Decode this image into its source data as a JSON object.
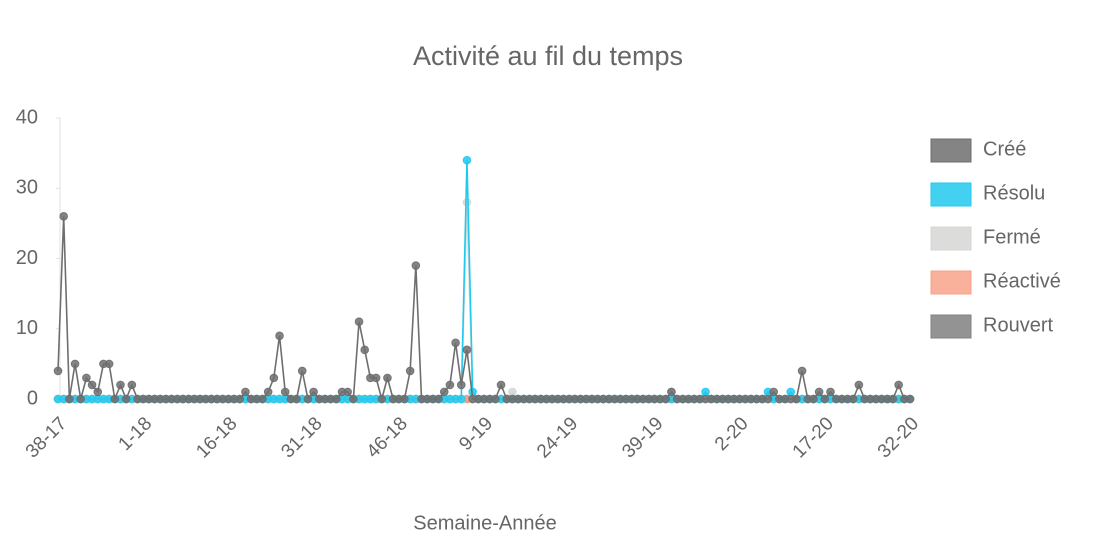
{
  "chart_data": {
    "type": "line",
    "title": "Activité au fil du temps",
    "x_label": "Semaine-Année",
    "categories": [
      "38-17",
      null,
      null,
      null,
      null,
      null,
      null,
      null,
      null,
      null,
      null,
      null,
      null,
      null,
      null,
      "1-18",
      null,
      null,
      null,
      null,
      null,
      null,
      null,
      null,
      null,
      null,
      null,
      null,
      null,
      null,
      "16-18",
      null,
      null,
      null,
      null,
      null,
      null,
      null,
      null,
      null,
      null,
      null,
      null,
      null,
      null,
      "31-18",
      null,
      null,
      null,
      null,
      null,
      null,
      null,
      null,
      null,
      null,
      null,
      null,
      null,
      null,
      "46-18",
      null,
      null,
      null,
      null,
      null,
      null,
      null,
      null,
      null,
      null,
      null,
      null,
      null,
      null,
      "9-19",
      null,
      null,
      null,
      null,
      null,
      null,
      null,
      null,
      null,
      null,
      null,
      null,
      null,
      null,
      "24-19",
      null,
      null,
      null,
      null,
      null,
      null,
      null,
      null,
      null,
      null,
      null,
      null,
      null,
      null,
      "39-19",
      null,
      null,
      null,
      null,
      null,
      null,
      null,
      null,
      null,
      null,
      null,
      null,
      null,
      null,
      "2-20",
      null,
      null,
      null,
      null,
      null,
      null,
      null,
      null,
      null,
      null,
      null,
      null,
      null,
      null,
      "17-20",
      null,
      null,
      null,
      null,
      null,
      null,
      null,
      null,
      null,
      null,
      null,
      null,
      null,
      null,
      "32-20"
    ],
    "series": [
      {
        "name": "Créé",
        "color": "#6e6e6e",
        "values": [
          4,
          26,
          0,
          5,
          0,
          3,
          2,
          1,
          5,
          5,
          0,
          2,
          0,
          2,
          0,
          0,
          0,
          0,
          0,
          0,
          0,
          0,
          0,
          0,
          0,
          0,
          0,
          0,
          0,
          0,
          0,
          0,
          0,
          1,
          0,
          0,
          0,
          1,
          3,
          9,
          1,
          0,
          0,
          4,
          0,
          1,
          0,
          0,
          0,
          0,
          1,
          1,
          0,
          11,
          7,
          3,
          3,
          0,
          3,
          0,
          0,
          0,
          4,
          19,
          0,
          0,
          0,
          0,
          1,
          2,
          8,
          2,
          7,
          0,
          0,
          0,
          0,
          0,
          2,
          0,
          0,
          0,
          0,
          0,
          0,
          0,
          0,
          0,
          0,
          0,
          0,
          0,
          0,
          0,
          0,
          0,
          0,
          0,
          0,
          0,
          0,
          0,
          0,
          0,
          0,
          0,
          0,
          0,
          1,
          0,
          0,
          0,
          0,
          0,
          0,
          0,
          0,
          0,
          0,
          0,
          0,
          0,
          0,
          0,
          0,
          0,
          1,
          0,
          0,
          0,
          0,
          4,
          0,
          0,
          1,
          0,
          1,
          0,
          0,
          0,
          0,
          2,
          0,
          0,
          0,
          0,
          0,
          0,
          2,
          0,
          0
        ]
      },
      {
        "name": "Résolu",
        "color": "#22c9ef",
        "values": [
          0,
          0,
          0,
          0,
          0,
          0,
          0,
          0,
          0,
          0,
          0,
          0,
          0,
          0,
          0,
          0,
          0,
          0,
          0,
          0,
          0,
          0,
          0,
          0,
          0,
          0,
          0,
          0,
          0,
          0,
          0,
          0,
          0,
          0,
          0,
          0,
          0,
          0,
          0,
          0,
          0,
          0,
          0,
          0,
          0,
          0,
          0,
          0,
          0,
          0,
          0,
          0,
          0,
          0,
          0,
          0,
          0,
          0,
          0,
          0,
          0,
          0,
          0,
          0,
          0,
          0,
          0,
          0,
          0,
          0,
          0,
          0,
          34,
          1,
          0,
          0,
          0,
          0,
          0,
          0,
          0,
          0,
          0,
          0,
          0,
          0,
          0,
          0,
          0,
          0,
          0,
          0,
          0,
          0,
          0,
          0,
          0,
          0,
          0,
          0,
          0,
          0,
          0,
          0,
          0,
          0,
          0,
          0,
          0,
          0,
          0,
          0,
          0,
          0,
          1,
          0,
          0,
          0,
          0,
          0,
          0,
          0,
          0,
          0,
          0,
          1,
          0,
          0,
          0,
          1,
          0,
          0,
          0,
          0,
          0,
          0,
          0,
          0,
          0,
          0,
          0,
          0,
          0,
          0,
          0,
          0,
          0,
          0,
          0,
          0,
          0
        ]
      },
      {
        "name": "Fermé",
        "color": "#d6d6d4",
        "values": [
          0,
          0,
          0,
          0,
          0,
          0,
          0,
          0,
          0,
          0,
          0,
          0,
          0,
          0,
          0,
          0,
          0,
          0,
          0,
          0,
          0,
          0,
          0,
          0,
          0,
          0,
          0,
          0,
          0,
          0,
          0,
          0,
          0,
          0,
          0,
          0,
          0,
          0,
          0,
          0,
          0,
          0,
          0,
          0,
          0,
          0,
          0,
          0,
          0,
          0,
          0,
          0,
          0,
          0,
          0,
          0,
          0,
          0,
          0,
          0,
          0,
          0,
          0,
          0,
          0,
          0,
          0,
          0,
          0,
          0,
          0,
          0,
          28,
          0,
          0,
          0,
          0,
          0,
          0,
          0,
          1,
          0,
          0,
          0,
          0,
          0,
          0,
          0,
          0,
          0,
          0,
          0,
          0,
          0,
          0,
          0,
          0,
          0,
          0,
          0,
          0,
          0,
          0,
          0,
          0,
          0,
          0,
          0,
          1,
          0,
          0,
          0,
          0,
          0,
          0,
          0,
          0,
          0,
          0,
          0,
          0,
          0,
          0,
          0,
          0,
          0,
          0,
          0,
          0,
          0,
          0,
          0,
          0,
          0,
          0,
          0,
          0,
          0,
          0,
          0,
          0,
          0,
          0,
          0,
          0,
          0,
          0,
          0,
          0,
          0,
          0
        ]
      },
      {
        "name": "Réactivé",
        "color": "#f9a38b",
        "values": [
          0,
          0,
          0,
          0,
          0,
          0,
          0,
          0,
          0,
          0,
          0,
          0,
          0,
          0,
          0,
          0,
          0,
          0,
          0,
          0,
          0,
          0,
          0,
          0,
          0,
          0,
          0,
          0,
          0,
          0,
          0,
          0,
          0,
          0,
          0,
          0,
          0,
          0,
          0,
          0,
          0,
          0,
          0,
          0,
          0,
          0,
          0,
          0,
          0,
          0,
          0,
          0,
          0,
          0,
          0,
          0,
          0,
          0,
          0,
          0,
          0,
          0,
          0,
          0,
          0,
          0,
          0,
          0,
          0,
          0,
          0,
          0,
          0,
          0,
          0,
          0,
          0,
          0,
          0,
          0,
          0,
          0,
          0,
          0,
          0,
          0,
          0,
          0,
          0,
          0,
          0,
          0,
          0,
          0,
          0,
          0,
          0,
          0,
          0,
          0,
          0,
          0,
          0,
          0,
          0,
          0,
          0,
          0,
          0,
          0,
          0,
          0,
          0,
          0,
          0,
          0,
          0,
          0,
          0,
          0,
          0,
          0,
          0,
          0,
          0,
          0,
          0,
          0,
          0,
          0,
          0,
          0,
          0,
          0,
          0,
          0,
          0,
          0,
          0,
          0,
          0,
          0,
          0,
          0,
          0,
          0,
          0,
          0,
          0,
          0,
          0
        ]
      },
      {
        "name": "Rouvert",
        "color": "#808080",
        "values": [
          0,
          0,
          0,
          0,
          0,
          0,
          0,
          0,
          0,
          0,
          0,
          0,
          0,
          0,
          0,
          0,
          0,
          0,
          0,
          0,
          0,
          0,
          0,
          0,
          0,
          0,
          0,
          0,
          0,
          0,
          0,
          0,
          0,
          0,
          0,
          0,
          0,
          0,
          0,
          0,
          0,
          0,
          0,
          0,
          0,
          0,
          0,
          0,
          0,
          0,
          0,
          0,
          0,
          0,
          0,
          0,
          0,
          0,
          0,
          0,
          0,
          0,
          0,
          0,
          0,
          0,
          0,
          0,
          0,
          0,
          0,
          0,
          0,
          0,
          0,
          0,
          0,
          0,
          0,
          0,
          0,
          0,
          0,
          0,
          0,
          0,
          0,
          0,
          0,
          0,
          0,
          0,
          0,
          0,
          0,
          0,
          0,
          0,
          0,
          0,
          0,
          0,
          0,
          0,
          0,
          0,
          0,
          0,
          0,
          0,
          0,
          0,
          0,
          0,
          0,
          0,
          0,
          0,
          0,
          0,
          0,
          0,
          0,
          0,
          0,
          0,
          0,
          0,
          0,
          0,
          0,
          0,
          0,
          0,
          0,
          0,
          0,
          0,
          0,
          0,
          0,
          0,
          0,
          0,
          0,
          0,
          0,
          0,
          0,
          0,
          0
        ]
      }
    ],
    "ylim": [
      0,
      40
    ],
    "yticks": [
      0,
      10,
      20,
      30,
      40
    ],
    "legend": "right"
  }
}
